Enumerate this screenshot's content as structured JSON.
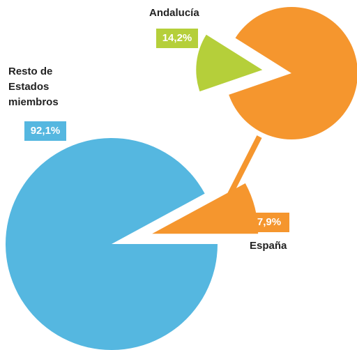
{
  "chart_data": [
    {
      "type": "pie",
      "categories": [
        "Resto de Estados miembros",
        "España"
      ],
      "values": [
        92.1,
        7.9
      ],
      "value_labels": [
        "92,1%",
        "7,9%"
      ],
      "colors": [
        "#55b7e0",
        "#f5962e"
      ]
    },
    {
      "type": "pie",
      "categories": [
        "Andalucía",
        null
      ],
      "values": [
        14.2,
        85.8
      ],
      "value_labels": [
        "14,2%",
        null
      ],
      "colors": [
        "#b5cf3a",
        "#f5962e"
      ]
    }
  ]
}
